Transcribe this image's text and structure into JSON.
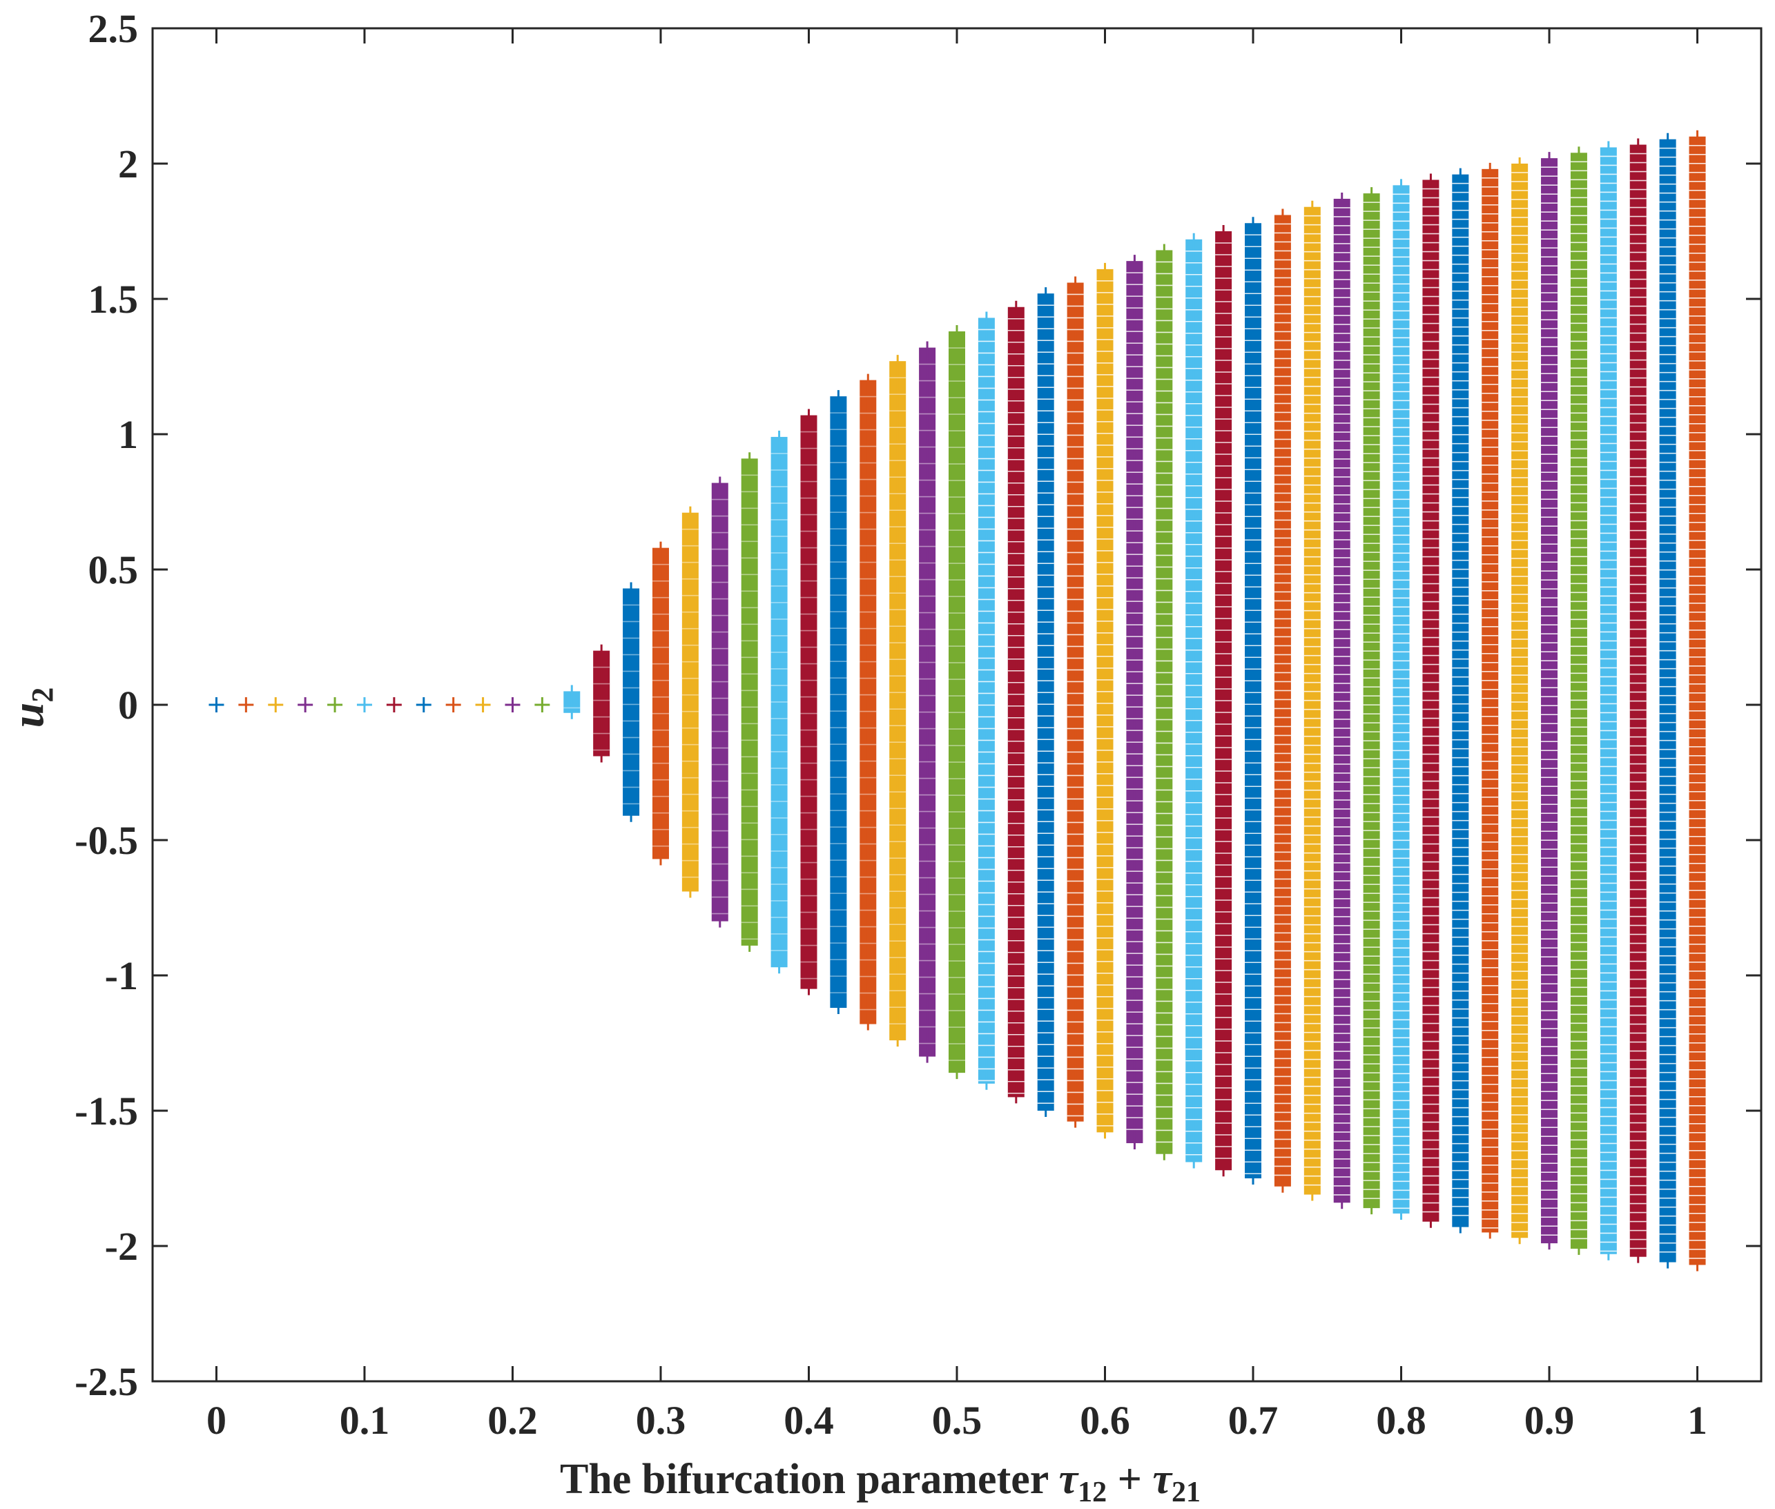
{
  "chart_data": {
    "type": "scatter",
    "marker": "+",
    "xlabel": {
      "text": "The bifurcation parameter ",
      "math_var": "τ",
      "sub1": "12",
      "op": " + ",
      "sub2": "21"
    },
    "ylabel": {
      "var": "u",
      "sub": "2"
    },
    "xlim": [
      0,
      1
    ],
    "ylim": [
      -2.5,
      2.5
    ],
    "xticks": [
      0,
      0.1,
      0.2,
      0.3,
      0.4,
      0.5,
      0.6,
      0.7,
      0.8,
      0.9,
      1
    ],
    "xtick_labels": [
      "0",
      "0.1",
      "0.2",
      "0.3",
      "0.4",
      "0.5",
      "0.6",
      "0.7",
      "0.8",
      "0.9",
      "1"
    ],
    "yticks": [
      2.5,
      2,
      1.5,
      1,
      0.5,
      0,
      -0.5,
      -1,
      -1.5,
      -2,
      -2.5
    ],
    "ytick_labels": [
      "2.5",
      "2",
      "1.5",
      "1",
      "0.5",
      "0",
      "-0.5",
      "-1",
      "-1.5",
      "-2",
      "-2.5"
    ],
    "grid": false,
    "colors": [
      "#0072BD",
      "#D95319",
      "#EDB120",
      "#7E2F8E",
      "#77AC30",
      "#4DBEEE",
      "#A2142F"
    ],
    "series": [
      {
        "x": 0.0,
        "min": 0.0,
        "max": 0.0,
        "color": "#0072BD"
      },
      {
        "x": 0.02,
        "min": 0.0,
        "max": 0.0,
        "color": "#D95319"
      },
      {
        "x": 0.04,
        "min": 0.0,
        "max": 0.0,
        "color": "#EDB120"
      },
      {
        "x": 0.06,
        "min": 0.0,
        "max": 0.0,
        "color": "#7E2F8E"
      },
      {
        "x": 0.08,
        "min": 0.0,
        "max": 0.0,
        "color": "#77AC30"
      },
      {
        "x": 0.1,
        "min": 0.0,
        "max": 0.0,
        "color": "#4DBEEE"
      },
      {
        "x": 0.12,
        "min": 0.0,
        "max": 0.0,
        "color": "#A2142F"
      },
      {
        "x": 0.14,
        "min": 0.0,
        "max": 0.0,
        "color": "#0072BD"
      },
      {
        "x": 0.16,
        "min": 0.0,
        "max": 0.0,
        "color": "#D95319"
      },
      {
        "x": 0.18,
        "min": 0.0,
        "max": 0.0,
        "color": "#EDB120"
      },
      {
        "x": 0.2,
        "min": 0.0,
        "max": 0.0,
        "color": "#7E2F8E"
      },
      {
        "x": 0.22,
        "min": 0.0,
        "max": 0.0,
        "color": "#77AC30"
      },
      {
        "x": 0.24,
        "min": -0.03,
        "max": 0.05,
        "color": "#4DBEEE"
      },
      {
        "x": 0.26,
        "min": -0.19,
        "max": 0.2,
        "color": "#A2142F"
      },
      {
        "x": 0.28,
        "min": -0.41,
        "max": 0.43,
        "color": "#0072BD"
      },
      {
        "x": 0.3,
        "min": -0.57,
        "max": 0.58,
        "color": "#D95319"
      },
      {
        "x": 0.32,
        "min": -0.69,
        "max": 0.71,
        "color": "#EDB120"
      },
      {
        "x": 0.34,
        "min": -0.8,
        "max": 0.82,
        "color": "#7E2F8E"
      },
      {
        "x": 0.36,
        "min": -0.89,
        "max": 0.91,
        "color": "#77AC30"
      },
      {
        "x": 0.38,
        "min": -0.97,
        "max": 0.99,
        "color": "#4DBEEE"
      },
      {
        "x": 0.4,
        "min": -1.05,
        "max": 1.07,
        "color": "#A2142F"
      },
      {
        "x": 0.42,
        "min": -1.12,
        "max": 1.14,
        "color": "#0072BD"
      },
      {
        "x": 0.44,
        "min": -1.18,
        "max": 1.2,
        "color": "#D95319"
      },
      {
        "x": 0.46,
        "min": -1.24,
        "max": 1.27,
        "color": "#EDB120"
      },
      {
        "x": 0.48,
        "min": -1.3,
        "max": 1.32,
        "color": "#7E2F8E"
      },
      {
        "x": 0.5,
        "min": -1.36,
        "max": 1.38,
        "color": "#77AC30"
      },
      {
        "x": 0.52,
        "min": -1.4,
        "max": 1.43,
        "color": "#4DBEEE"
      },
      {
        "x": 0.54,
        "min": -1.45,
        "max": 1.47,
        "color": "#A2142F"
      },
      {
        "x": 0.56,
        "min": -1.5,
        "max": 1.52,
        "color": "#0072BD"
      },
      {
        "x": 0.58,
        "min": -1.54,
        "max": 1.56,
        "color": "#D95319"
      },
      {
        "x": 0.6,
        "min": -1.58,
        "max": 1.61,
        "color": "#EDB120"
      },
      {
        "x": 0.62,
        "min": -1.62,
        "max": 1.64,
        "color": "#7E2F8E"
      },
      {
        "x": 0.64,
        "min": -1.66,
        "max": 1.68,
        "color": "#77AC30"
      },
      {
        "x": 0.66,
        "min": -1.69,
        "max": 1.72,
        "color": "#4DBEEE"
      },
      {
        "x": 0.68,
        "min": -1.72,
        "max": 1.75,
        "color": "#A2142F"
      },
      {
        "x": 0.7,
        "min": -1.75,
        "max": 1.78,
        "color": "#0072BD"
      },
      {
        "x": 0.72,
        "min": -1.78,
        "max": 1.81,
        "color": "#D95319"
      },
      {
        "x": 0.74,
        "min": -1.81,
        "max": 1.84,
        "color": "#EDB120"
      },
      {
        "x": 0.76,
        "min": -1.84,
        "max": 1.87,
        "color": "#7E2F8E"
      },
      {
        "x": 0.78,
        "min": -1.86,
        "max": 1.89,
        "color": "#77AC30"
      },
      {
        "x": 0.8,
        "min": -1.88,
        "max": 1.92,
        "color": "#4DBEEE"
      },
      {
        "x": 0.82,
        "min": -1.91,
        "max": 1.94,
        "color": "#A2142F"
      },
      {
        "x": 0.84,
        "min": -1.93,
        "max": 1.96,
        "color": "#0072BD"
      },
      {
        "x": 0.86,
        "min": -1.95,
        "max": 1.98,
        "color": "#D95319"
      },
      {
        "x": 0.88,
        "min": -1.97,
        "max": 2.0,
        "color": "#EDB120"
      },
      {
        "x": 0.9,
        "min": -1.99,
        "max": 2.02,
        "color": "#7E2F8E"
      },
      {
        "x": 0.92,
        "min": -2.01,
        "max": 2.04,
        "color": "#77AC30"
      },
      {
        "x": 0.94,
        "min": -2.03,
        "max": 2.06,
        "color": "#4DBEEE"
      },
      {
        "x": 0.96,
        "min": -2.04,
        "max": 2.07,
        "color": "#A2142F"
      },
      {
        "x": 0.98,
        "min": -2.06,
        "max": 2.09,
        "color": "#0072BD"
      },
      {
        "x": 1.0,
        "min": -2.07,
        "max": 2.1,
        "color": "#D95319"
      }
    ]
  }
}
